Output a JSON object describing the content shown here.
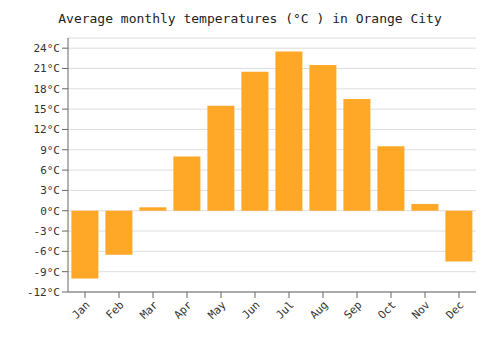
{
  "chart_data": {
    "type": "bar",
    "title": "Average monthly temperatures (°C ) in Orange City",
    "categories": [
      "Jan",
      "Feb",
      "Mar",
      "Apr",
      "May",
      "Jun",
      "Jul",
      "Aug",
      "Sep",
      "Oct",
      "Nov",
      "Dec"
    ],
    "values": [
      -10,
      -6.5,
      0.5,
      8,
      15.5,
      20.5,
      23.5,
      21.5,
      16.5,
      9.5,
      1,
      -7.5
    ],
    "color": "#FFA726",
    "ylim": [
      -12,
      25.5
    ],
    "yticks": [
      {
        "value": -12,
        "label": "-12°C"
      },
      {
        "value": -9,
        "label": "-9°C"
      },
      {
        "value": -6,
        "label": "-6°C"
      },
      {
        "value": -3,
        "label": "-3°C"
      },
      {
        "value": 0,
        "label": "0°C"
      },
      {
        "value": 3,
        "label": "3°C"
      },
      {
        "value": 6,
        "label": "6°C"
      },
      {
        "value": 9,
        "label": "9°C"
      },
      {
        "value": 12,
        "label": "12°C"
      },
      {
        "value": 15,
        "label": "15°C"
      },
      {
        "value": 18,
        "label": "18°C"
      },
      {
        "value": 21,
        "label": "21°C"
      },
      {
        "value": 24,
        "label": "24°C"
      }
    ],
    "grid": true
  }
}
